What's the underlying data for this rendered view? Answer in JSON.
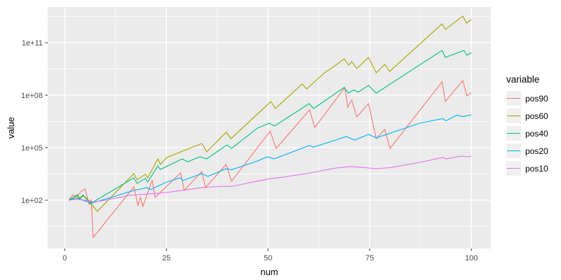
{
  "figure": {
    "background": "#FFFFFF",
    "panel_background": "#EBEBEB",
    "grid_color": "#FFFFFF",
    "tick_mark_color": "#333333",
    "axis_text_color": "#4D4D4D"
  },
  "chart_data": {
    "type": "line",
    "title": "",
    "xlabel": "num",
    "ylabel": "value",
    "x_scale": "linear",
    "y_scale": "log10",
    "xlim": [
      -4.2,
      104.8
    ],
    "ylim": [
      0.174,
      11000000000000
    ],
    "x_ticks": [
      0,
      25,
      50,
      75,
      100
    ],
    "x_tick_labels": [
      "0",
      "25",
      "50",
      "75",
      "100"
    ],
    "x_minor_ticks": [
      12.5,
      37.5,
      62.5,
      87.5
    ],
    "y_ticks": [
      100,
      100000,
      100000000,
      100000000000
    ],
    "y_tick_labels": [
      "1e+02",
      "1e+05",
      "1e+08",
      "1e+11"
    ],
    "y_minor_ticks": [
      3.16,
      3162,
      3162000,
      3162000000,
      3162000000000
    ],
    "grid": "both",
    "legend": {
      "title": "variable",
      "position": "right"
    },
    "series": [
      {
        "name": "pos90",
        "color": "#F8766D",
        "points": [
          [
            1,
            100
          ],
          [
            2,
            200
          ],
          [
            3,
            158
          ],
          [
            4,
            316
          ],
          [
            5,
            437
          ],
          [
            6,
            58
          ],
          [
            6.5,
            112
          ],
          [
            7,
            0.75
          ],
          [
            17,
            575
          ],
          [
            18,
            52
          ],
          [
            18.6,
            145
          ],
          [
            19.2,
            44
          ],
          [
            21.5,
            1450
          ],
          [
            22.2,
            145
          ],
          [
            28.5,
            3630
          ],
          [
            29.4,
            363
          ],
          [
            33.7,
            4370
          ],
          [
            34.6,
            525
          ],
          [
            39.7,
            11000
          ],
          [
            41,
            1200
          ],
          [
            50.5,
            871000
          ],
          [
            52,
            91200
          ],
          [
            60.2,
            14500000
          ],
          [
            61.5,
            1450000
          ],
          [
            68.9,
            275000000
          ],
          [
            69.6,
            20900000
          ],
          [
            70.6,
            52500000
          ],
          [
            71.8,
            5750000
          ],
          [
            74.7,
            33100000
          ],
          [
            76.6,
            331000
          ],
          [
            78.7,
            1100000
          ],
          [
            80,
            91200
          ],
          [
            92.8,
            575000000
          ],
          [
            93.6,
            43700000
          ],
          [
            97.9,
            692000000
          ],
          [
            98.9,
            91200000
          ],
          [
            100,
            145000000
          ]
        ]
      },
      {
        "name": "pos60",
        "color": "#A3A500",
        "points": [
          [
            1,
            100
          ],
          [
            2,
            132
          ],
          [
            3.1,
            174
          ],
          [
            3.7,
            112
          ],
          [
            4.5,
            174
          ],
          [
            5.5,
            126
          ],
          [
            8,
            23
          ],
          [
            17,
            3310
          ],
          [
            17.8,
            1450
          ],
          [
            19.8,
            3020
          ],
          [
            20.4,
            1910
          ],
          [
            22.9,
            22900
          ],
          [
            23.5,
            11000
          ],
          [
            25.1,
            27500
          ],
          [
            30,
            79400
          ],
          [
            33.7,
            174000
          ],
          [
            34.9,
            57500
          ],
          [
            39.7,
            759000
          ],
          [
            40.9,
            331000
          ],
          [
            45,
            2570000
          ],
          [
            50.7,
            43700000
          ],
          [
            51.8,
            17400000
          ],
          [
            58.4,
            437000000
          ],
          [
            59.5,
            229000000
          ],
          [
            64,
            2000000000
          ],
          [
            66.7,
            5250000000
          ],
          [
            68.7,
            12000000000
          ],
          [
            69.8,
            5250000000
          ],
          [
            70.6,
            8320000000
          ],
          [
            71.8,
            3310000000
          ],
          [
            74.7,
            14500000000
          ],
          [
            76.6,
            1910000000
          ],
          [
            78.7,
            5750000000
          ],
          [
            79.9,
            2290000000
          ],
          [
            92.8,
            1200000000000
          ],
          [
            93.6,
            575000000000
          ],
          [
            97.9,
            3310000000000
          ],
          [
            98.8,
            1320000000000
          ],
          [
            100,
            2090000000000
          ]
        ]
      },
      {
        "name": "pos40",
        "color": "#00BF7D",
        "points": [
          [
            1,
            100
          ],
          [
            2,
            141
          ],
          [
            3.1,
            209
          ],
          [
            3.7,
            126
          ],
          [
            4.5,
            200
          ],
          [
            6.3,
            63
          ],
          [
            17,
            1910
          ],
          [
            17.8,
            912
          ],
          [
            19.8,
            1740
          ],
          [
            20.4,
            1100
          ],
          [
            22.9,
            9120
          ],
          [
            23.5,
            5750
          ],
          [
            28.9,
            22900
          ],
          [
            30.2,
            15800
          ],
          [
            33.2,
            30200
          ],
          [
            34.9,
            22900
          ],
          [
            39.9,
            145000
          ],
          [
            41,
            91200
          ],
          [
            47.4,
            1320000
          ],
          [
            50.3,
            2510000
          ],
          [
            51.6,
            1740000
          ],
          [
            60.1,
            33100000
          ],
          [
            61.2,
            17400000
          ],
          [
            68.7,
            275000000
          ],
          [
            69.8,
            132000000
          ],
          [
            71,
            200000000
          ],
          [
            72.2,
            151000000
          ],
          [
            74.7,
            363000000
          ],
          [
            76.6,
            132000000
          ],
          [
            92.8,
            36300000000
          ],
          [
            93.6,
            14500000000
          ],
          [
            98.2,
            36300000000
          ],
          [
            98.9,
            19100000000
          ],
          [
            100,
            27500000000
          ]
        ]
      },
      {
        "name": "pos20",
        "color": "#00B0F6",
        "points": [
          [
            1,
            100
          ],
          [
            3.1,
            132
          ],
          [
            5.3,
            83
          ],
          [
            7,
            71
          ],
          [
            17,
            363
          ],
          [
            20.3,
            525
          ],
          [
            21,
            398
          ],
          [
            25.1,
            1100
          ],
          [
            28.4,
            1910
          ],
          [
            29,
            1320
          ],
          [
            33.7,
            3310
          ],
          [
            35.2,
            2290
          ],
          [
            39.7,
            6310
          ],
          [
            41,
            5500
          ],
          [
            47.4,
            17400
          ],
          [
            49.8,
            30200
          ],
          [
            51.5,
            22900
          ],
          [
            60.1,
            132000
          ],
          [
            61.2,
            110000
          ],
          [
            66.7,
            275000
          ],
          [
            69.2,
            437000
          ],
          [
            71.3,
            275000
          ],
          [
            74.7,
            575000
          ],
          [
            76.6,
            363000
          ],
          [
            87.3,
            2510000
          ],
          [
            92.9,
            4570000
          ],
          [
            93.8,
            3470000
          ],
          [
            96.4,
            7240000
          ],
          [
            97.9,
            6030000
          ],
          [
            100,
            7590000
          ]
        ]
      },
      {
        "name": "pos10",
        "color": "#E76BF3",
        "points": [
          [
            1,
            100
          ],
          [
            3,
            112
          ],
          [
            5,
            100
          ],
          [
            7,
            76
          ],
          [
            10,
            100
          ],
          [
            16,
            191
          ],
          [
            20,
            224
          ],
          [
            25,
            275
          ],
          [
            30,
            398
          ],
          [
            33.7,
            525
          ],
          [
            36.4,
            575
          ],
          [
            39.7,
            631
          ],
          [
            41,
            603
          ],
          [
            45,
            955
          ],
          [
            50.7,
            1740
          ],
          [
            53.8,
            2090
          ],
          [
            60.4,
            3630
          ],
          [
            66.7,
            6920
          ],
          [
            70.1,
            8320
          ],
          [
            73,
            7590
          ],
          [
            76.6,
            6310
          ],
          [
            80,
            7240
          ],
          [
            87.3,
            14500
          ],
          [
            93,
            27500
          ],
          [
            93.8,
            22900
          ],
          [
            97.4,
            33100
          ],
          [
            99,
            30200
          ],
          [
            100,
            33100
          ]
        ]
      }
    ]
  }
}
